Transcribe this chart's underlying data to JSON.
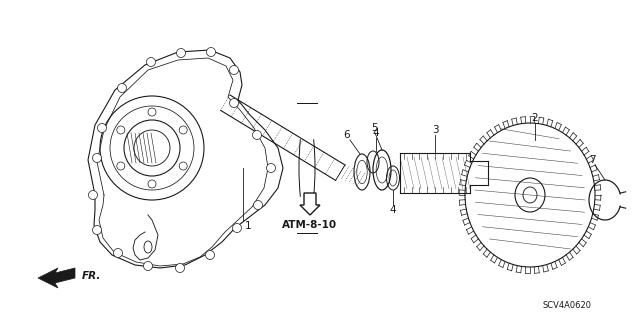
{
  "bg_color": "#ffffff",
  "fig_width": 6.4,
  "fig_height": 3.19,
  "dpi": 100,
  "part_label": "ATM-8-10",
  "diagram_code": "SCV4A0620",
  "direction_label": "FR."
}
